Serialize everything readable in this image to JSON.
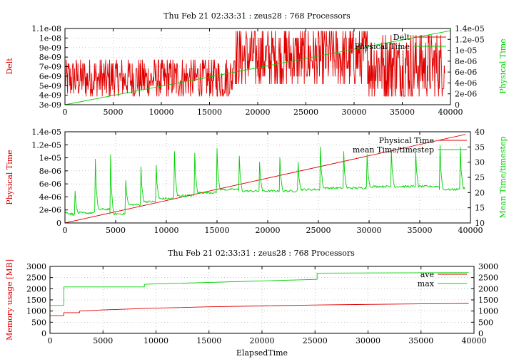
{
  "colors": {
    "red": "#e00000",
    "green": "#00d000",
    "black": "#000000"
  },
  "chart_data": [
    {
      "type": "line",
      "title": "Thu Feb 21 02:33:31 : zeus28 : 768 Processors",
      "xlabel": "",
      "ylabel": "Delt",
      "y2label": "Physical Time",
      "xlim": [
        0,
        40000
      ],
      "ylim": [
        3e-09,
        1.1e-08
      ],
      "y2lim": [
        0,
        1.4e-05
      ],
      "xticks": [
        "0",
        "5000",
        "10000",
        "15000",
        "20000",
        "25000",
        "30000",
        "35000",
        "40000"
      ],
      "yticks": [
        "3e-09",
        "4e-09",
        "5e-09",
        "6e-09",
        "7e-09",
        "8e-09",
        "9e-09",
        "1e-08",
        "1.1e-08"
      ],
      "y2ticks": [
        "0",
        "2e-06",
        "4e-06",
        "6e-06",
        "8e-06",
        "1e-05",
        "1.2e-05",
        "1.4e-05"
      ],
      "grid": true,
      "legend": "top-right",
      "series": [
        {
          "name": "Delt",
          "color": "#e00000",
          "axis": "y",
          "segments": [
            {
              "x0": 0,
              "x1": 17400,
              "levels": [
                3.9e-09,
                4.2e-09,
                4.6e-09,
                5e-09,
                5.5e-09,
                5.9e-09,
                6.3e-09,
                6.8e-09,
                7.3e-09,
                7.7e-09
              ]
            },
            {
              "x0": 17400,
              "x1": 31500,
              "levels": [
                5.2e-09,
                6e-09,
                6.8e-09,
                7.6e-09,
                8.4e-09,
                9.2e-09,
                1e-08,
                1.07e-08
              ]
            },
            {
              "x0": 31500,
              "x1": 39400,
              "levels": [
                3.9e-09,
                4.7e-09,
                5.5e-09,
                6.3e-09,
                7.1e-09,
                7.9e-09,
                8.7e-09,
                9.5e-09,
                1.03e-08
              ]
            }
          ]
        },
        {
          "name": "Physical Time",
          "color": "#00d000",
          "axis": "y2",
          "x": [
            0,
            40000
          ],
          "y": [
            0,
            1.36e-05
          ]
        }
      ]
    },
    {
      "type": "line",
      "title": "",
      "xlabel": "",
      "ylabel": "Physical Time",
      "y2label": "Mean Time/timestep",
      "xlim": [
        0,
        40000
      ],
      "ylim": [
        0,
        1.4e-05
      ],
      "y2lim": [
        10,
        40
      ],
      "xticks": [
        "0",
        "5000",
        "10000",
        "15000",
        "20000",
        "25000",
        "30000",
        "35000",
        "40000"
      ],
      "yticks": [
        "0",
        "2e-06",
        "4e-06",
        "6e-06",
        "8e-06",
        "1e-05",
        "1.2e-05",
        "1.4e-05"
      ],
      "y2ticks": [
        "10",
        "15",
        "20",
        "25",
        "30",
        "35",
        "40"
      ],
      "grid": true,
      "legend": "top-right",
      "series": [
        {
          "name": "Physical Time",
          "color": "#e00000",
          "axis": "y",
          "x": [
            0,
            39500
          ],
          "y": [
            0,
            1.36e-05
          ]
        },
        {
          "name": "mean Time/timestep",
          "color": "#00d000",
          "axis": "y2",
          "start": [
            0,
            13.5
          ],
          "plateaus": [
            {
              "x0": 1000,
              "x1": 3000,
              "level": 13.3
            },
            {
              "x0": 3000,
              "x1": 4500,
              "level": 14.5
            },
            {
              "x0": 4500,
              "x1": 6000,
              "level": 13.0
            },
            {
              "x0": 6000,
              "x1": 7500,
              "level": 16.0
            },
            {
              "x0": 7500,
              "x1": 9000,
              "level": 17.0
            },
            {
              "x0": 9000,
              "x1": 10800,
              "level": 18.0
            },
            {
              "x0": 10800,
              "x1": 12800,
              "level": 19.0
            },
            {
              "x0": 12800,
              "x1": 15000,
              "level": 20.0
            },
            {
              "x0": 15000,
              "x1": 17200,
              "level": 21.0
            },
            {
              "x0": 17200,
              "x1": 19200,
              "level": 20.5
            },
            {
              "x0": 19200,
              "x1": 21200,
              "level": 20.5
            },
            {
              "x0": 21200,
              "x1": 23000,
              "level": 20.5
            },
            {
              "x0": 23000,
              "x1": 25200,
              "level": 21.0
            },
            {
              "x0": 25200,
              "x1": 27500,
              "level": 21.5
            },
            {
              "x0": 27500,
              "x1": 29800,
              "level": 21.5
            },
            {
              "x0": 29800,
              "x1": 32200,
              "level": 22.0
            },
            {
              "x0": 32200,
              "x1": 34600,
              "level": 22.0
            },
            {
              "x0": 34600,
              "x1": 37000,
              "level": 22.0
            },
            {
              "x0": 37000,
              "x1": 39000,
              "level": 21.0
            },
            {
              "x0": 39000,
              "x1": 39600,
              "level": 21.5
            }
          ],
          "spikes": [
            {
              "x": 1000,
              "peak": 20.5
            },
            {
              "x": 3000,
              "peak": 31.0
            },
            {
              "x": 4500,
              "peak": 32.5
            },
            {
              "x": 6000,
              "peak": 24.0
            },
            {
              "x": 7500,
              "peak": 28.5
            },
            {
              "x": 9000,
              "peak": 29.0
            },
            {
              "x": 10800,
              "peak": 33.5
            },
            {
              "x": 12800,
              "peak": 33.0
            },
            {
              "x": 15000,
              "peak": 34.5
            },
            {
              "x": 17200,
              "peak": 32.0
            },
            {
              "x": 19200,
              "peak": 30.0
            },
            {
              "x": 21200,
              "peak": 31.5
            },
            {
              "x": 23000,
              "peak": 30.0
            },
            {
              "x": 25200,
              "peak": 35.0
            },
            {
              "x": 27500,
              "peak": 33.5
            },
            {
              "x": 29800,
              "peak": 32.5
            },
            {
              "x": 32200,
              "peak": 34.0
            },
            {
              "x": 34600,
              "peak": 33.5
            },
            {
              "x": 37000,
              "peak": 35.5
            },
            {
              "x": 39000,
              "peak": 35.0
            }
          ]
        }
      ]
    },
    {
      "type": "line",
      "title": "Thu Feb 21 02:33:31 : zeus28 : 768 Processors",
      "xlabel": "ElapsedTime",
      "ylabel": "Memory usage [MB]",
      "y2label": "",
      "xlim": [
        0,
        40000
      ],
      "ylim": [
        0,
        3000
      ],
      "y2lim": [
        0,
        3000
      ],
      "xticks": [
        "0",
        "5000",
        "10000",
        "15000",
        "20000",
        "25000",
        "30000",
        "35000",
        "40000"
      ],
      "yticks": [
        "0",
        "500",
        "1000",
        "1500",
        "2000",
        "2500",
        "3000"
      ],
      "y2ticks": [
        "0",
        "500",
        "1000",
        "1500",
        "2000",
        "2500",
        "3000"
      ],
      "grid": true,
      "legend": "top-right",
      "series": [
        {
          "name": "ave",
          "color": "#e00000",
          "axis": "y",
          "x": [
            0,
            1300,
            1300,
            2800,
            2800,
            5000,
            10000,
            15000,
            20000,
            25000,
            30000,
            35000,
            39500
          ],
          "y": [
            790,
            790,
            930,
            930,
            1000,
            1050,
            1130,
            1190,
            1230,
            1270,
            1300,
            1320,
            1340
          ]
        },
        {
          "name": "max",
          "color": "#00d000",
          "axis": "y",
          "x": [
            0,
            1300,
            1300,
            8900,
            8900,
            25200,
            25200,
            39500
          ],
          "y": [
            1250,
            1250,
            2080,
            2080,
            2200,
            2420,
            2700,
            2720
          ]
        }
      ]
    }
  ]
}
